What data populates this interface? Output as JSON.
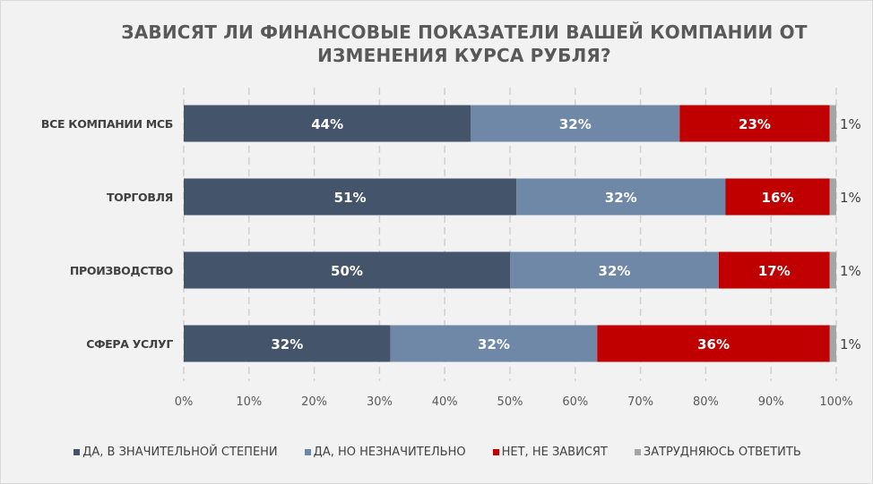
{
  "chart_data": {
    "type": "bar",
    "orientation": "horizontal",
    "stacked": "100%",
    "title": "ЗАВИСЯТ ЛИ ФИНАНСОВЫЕ ПОКАЗАТЕЛИ ВАШЕЙ КОМПАНИИ ОТ ИЗМЕНЕНИЯ КУРСА РУБЛЯ?",
    "title_lines": [
      "ЗАВИСЯТ ЛИ ФИНАНСОВЫЕ ПОКАЗАТЕЛИ ВАШЕЙ КОМПАНИИ ОТ",
      "ИЗМЕНЕНИЯ КУРСА РУБЛЯ?"
    ],
    "categories": [
      "ВСЕ КОМПАНИИ МСБ",
      "ТОРГОВЛЯ",
      "ПРОИЗВОДСТВО",
      "СФЕРА УСЛУГ"
    ],
    "series": [
      {
        "name": "ДА, В ЗНАЧИТЕЛЬНОЙ СТЕПЕНИ",
        "color": "#44546a",
        "values": [
          44,
          51,
          50,
          32
        ]
      },
      {
        "name": "ДА, НО НЕЗНАЧИТЕЛЬНО",
        "color": "#6f88a8",
        "values": [
          32,
          32,
          32,
          32
        ]
      },
      {
        "name": "НЕТ, НЕ ЗАВИСЯТ",
        "color": "#c00000",
        "values": [
          23,
          16,
          17,
          36
        ]
      },
      {
        "name": "ЗАТРУДНЯЮСЬ ОТВЕТИТЬ",
        "color": "#a5a5a5",
        "values": [
          1,
          1,
          1,
          1
        ]
      }
    ],
    "xlim": [
      0,
      100
    ],
    "xticks": [
      "0%",
      "10%",
      "20%",
      "30%",
      "40%",
      "50%",
      "60%",
      "70%",
      "80%",
      "90%",
      "100%"
    ],
    "grid": "vertical dashed",
    "legend": "bottom"
  }
}
